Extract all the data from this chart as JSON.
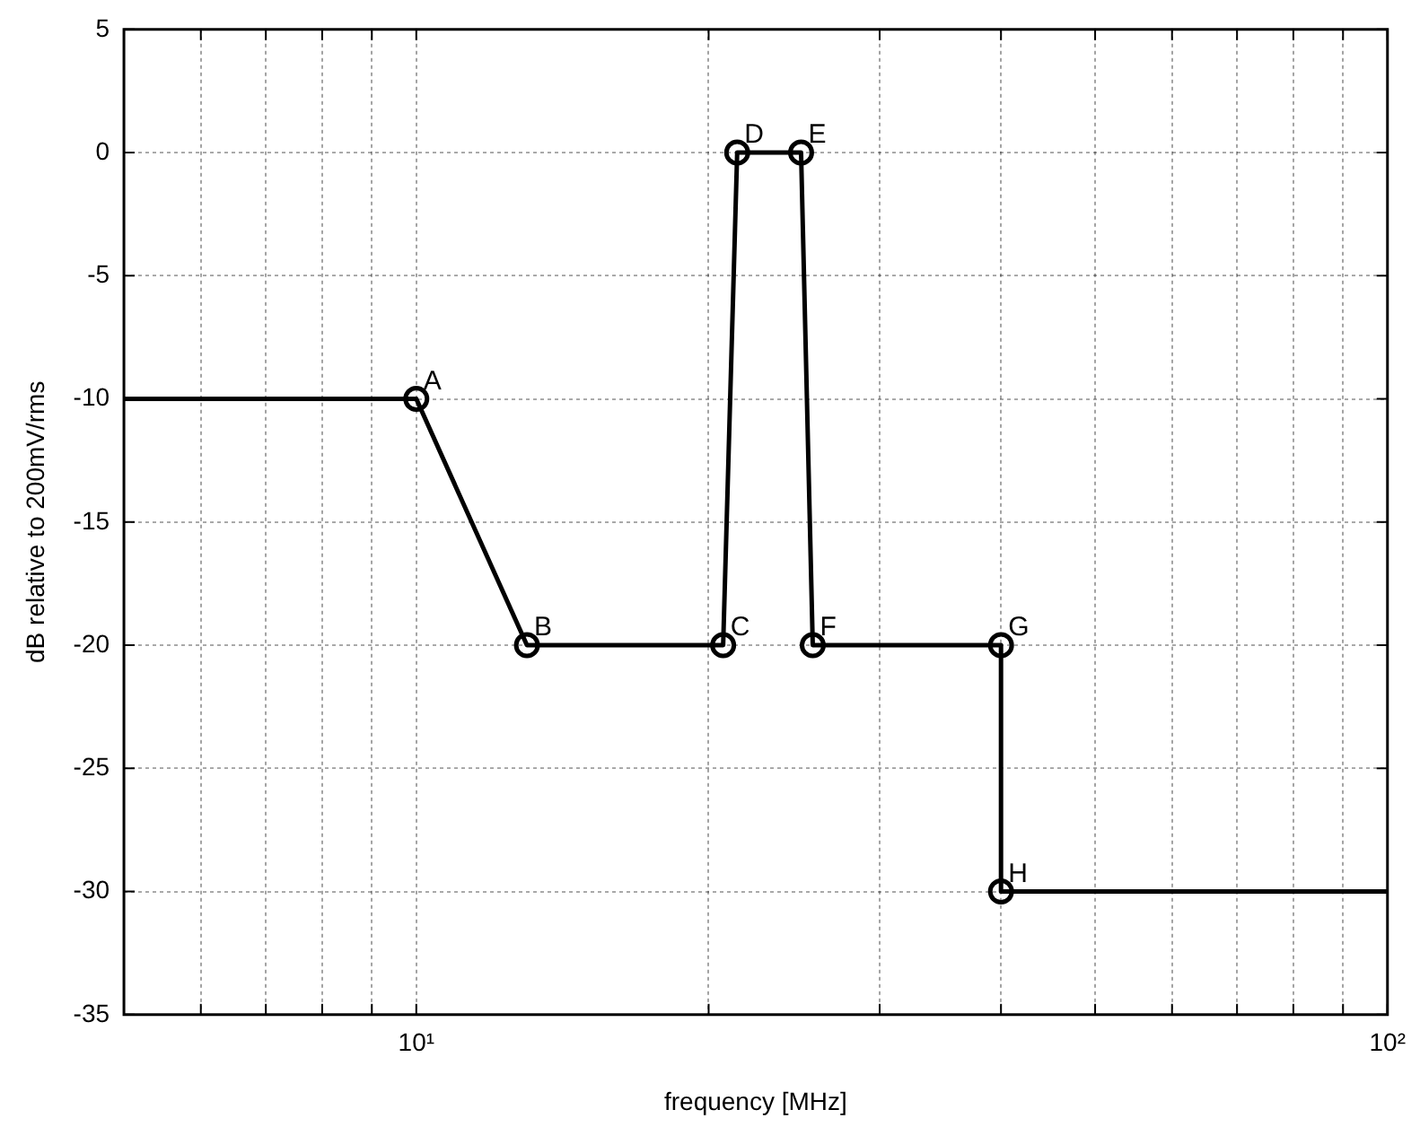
{
  "chart_data": {
    "type": "line",
    "xlabel": "frequency [MHz]",
    "ylabel": "dB relative to 200mV/rms",
    "log": "x",
    "grid": true,
    "legend": false,
    "xlim": [
      5,
      100
    ],
    "xticks": [
      {
        "value": 6,
        "label": null
      },
      {
        "value": 7,
        "label": null
      },
      {
        "value": 8,
        "label": null
      },
      {
        "value": 9,
        "label": null
      },
      {
        "value": 10,
        "label": "10¹"
      },
      {
        "value": 20,
        "label": null
      },
      {
        "value": 30,
        "label": null
      },
      {
        "value": 40,
        "label": null
      },
      {
        "value": 50,
        "label": null
      },
      {
        "value": 60,
        "label": null
      },
      {
        "value": 70,
        "label": null
      },
      {
        "value": 80,
        "label": null
      },
      {
        "value": 90,
        "label": null
      },
      {
        "value": 100,
        "label": "10²"
      }
    ],
    "ylim": [
      -35,
      5
    ],
    "yticks": [
      -35,
      -30,
      -25,
      -20,
      -15,
      -10,
      -5,
      0,
      5
    ],
    "series": [
      {
        "marker": "none",
        "color": "#000000",
        "x": [
          5,
          10,
          13,
          20.7,
          21.4,
          24.9,
          25.6,
          40,
          40,
          100
        ],
        "values": [
          -10,
          -10,
          -20,
          -20,
          0,
          0,
          -20,
          -20,
          -30,
          -30
        ]
      },
      {
        "type": "scatter",
        "marker": "circle",
        "color": "#000000",
        "x": [
          10,
          13,
          20.7,
          21.4,
          24.9,
          25.6,
          40,
          40
        ],
        "values": [
          -10,
          -20,
          -20,
          0,
          0,
          -20,
          -20,
          -30
        ]
      }
    ],
    "annotations": [
      {
        "text": "A",
        "x": 10,
        "y": -10
      },
      {
        "text": "B",
        "x": 13,
        "y": -20
      },
      {
        "text": "C",
        "x": 20.7,
        "y": -20
      },
      {
        "text": "D",
        "x": 21.4,
        "y": 0
      },
      {
        "text": "E",
        "x": 24.9,
        "y": 0
      },
      {
        "text": "F",
        "x": 25.6,
        "y": -20
      },
      {
        "text": "G",
        "x": 40,
        "y": -20
      },
      {
        "text": "H",
        "x": 40,
        "y": -30
      }
    ]
  }
}
